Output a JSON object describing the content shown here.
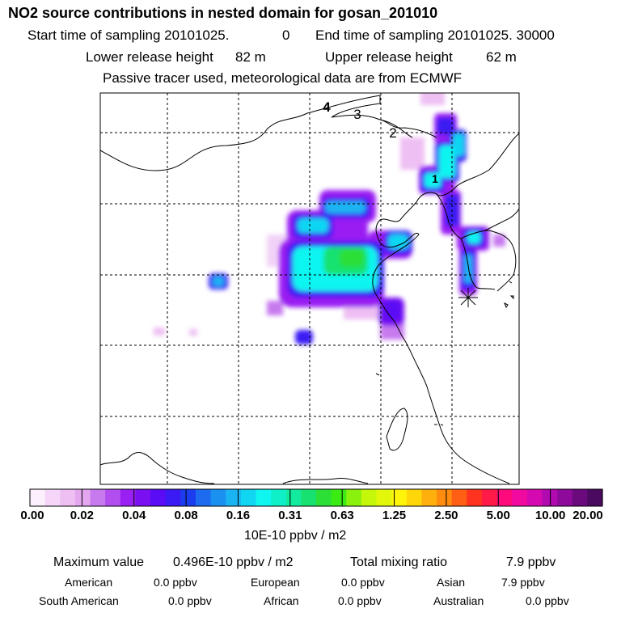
{
  "header": {
    "title": "NO2 source contributions in nested domain for gosan_201010",
    "start_label": "Start time of sampling 20101025.",
    "start_value": "0",
    "end_label": "End time of sampling 20101025. 30000",
    "lower_label": "Lower release height",
    "lower_value": "82 m",
    "upper_label": "Upper release height",
    "upper_value": "62 m",
    "note": "Passive tracer used, meteorological data are from ECMWF"
  },
  "map": {
    "markers": [
      {
        "label": "1"
      },
      {
        "label": "2"
      },
      {
        "label": "3"
      },
      {
        "label": "4"
      }
    ],
    "receptor_symbol": "asterisk"
  },
  "colorbar": {
    "tick_labels": [
      "0.00",
      "0.02",
      "0.04",
      "0.08",
      "0.16",
      "0.31",
      "0.63",
      "1.25",
      "2.50",
      "5.00",
      "10.00",
      "20.00"
    ],
    "units": "10E-10 ppbv / m2",
    "colors": [
      "#fdf0fd",
      "#f6d6f8",
      "#eebff3",
      "#e3a6ef",
      "#c779ee",
      "#b24ef0",
      "#9a1ff2",
      "#7a10f1",
      "#5a0cf4",
      "#3a1bf3",
      "#1c3cf0",
      "#1d6cf0",
      "#1a90f0",
      "#1bb4f3",
      "#11d6f2",
      "#0ff5f0",
      "#0ff0c8",
      "#12ea9d",
      "#17e270",
      "#2cdf36",
      "#3bec14",
      "#89f10c",
      "#c4f70a",
      "#e2f70a",
      "#fff40a",
      "#ffd60a",
      "#ffb00c",
      "#ff8b0f",
      "#ff5f14",
      "#ff3320",
      "#ff1a48",
      "#ff0a7c",
      "#f10aa0",
      "#d40ab0",
      "#b00ab0",
      "#8e0a9a",
      "#6a0a7c",
      "#4a0a60"
    ]
  },
  "stats": {
    "max_label": "Maximum value",
    "max_value": "0.496E-10 ppbv / m2",
    "total_label": "Total mixing ratio",
    "total_value": "7.9 ppbv",
    "rows": [
      [
        {
          "name": "American",
          "value": "0.0 ppbv"
        },
        {
          "name": "European",
          "value": "0.0 ppbv"
        },
        {
          "name": "Asian",
          "value": "7.9 ppbv"
        }
      ],
      [
        {
          "name": "South American",
          "value": "0.0 ppbv"
        },
        {
          "name": "African",
          "value": "0.0 ppbv"
        },
        {
          "name": "Australian",
          "value": "0.0 ppbv"
        }
      ]
    ]
  }
}
